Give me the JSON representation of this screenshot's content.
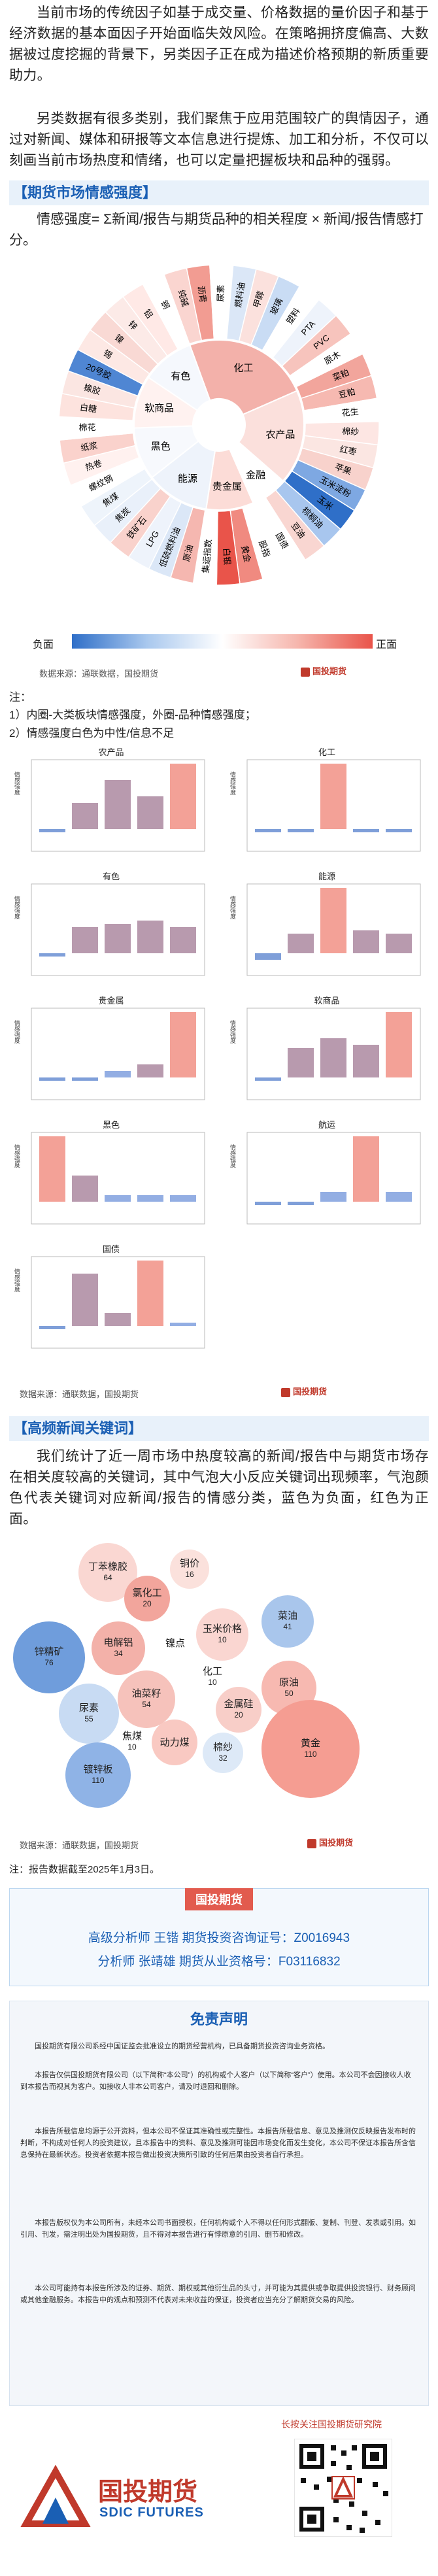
{
  "intro": {
    "p1": "当前市场的传统因子如基于成交量、价格数据的量价因子和基于经济数据的基本面因子开始面临失效风险。在策略拥挤度偏高、大数据被过度挖掘的背景下，另类因子正在成为描述价格预期的新质重要助力。",
    "p2": "另类数据有很多类别，我们聚焦于应用范围较广的舆情因子，通过对新闻、媒体和研报等文本信息进行提炼、加工和分析，不仅可以刻画当前市场热度和情绪，也可以定量把握板块和品种的强弱。"
  },
  "section1": {
    "title": "【期货市场情感强度】",
    "formula": "情感强度= Σ新闻/报告与期货品种的相关程度 × 新闻/报告情感打分。"
  },
  "sunburst": {
    "inner": [
      "化工",
      "农产品",
      "金融",
      "贵金属",
      "能源",
      "黑色",
      "软商品",
      "有色"
    ],
    "outer": [
      "纯碱",
      "沥青",
      "尿素",
      "燃料油",
      "甲醇",
      "玻璃",
      "塑料",
      "PTA",
      "PVC",
      "原木",
      "菜粕",
      "豆粕",
      "花生",
      "棉纱",
      "红枣",
      "苹果",
      "玉米淀粉",
      "玉米",
      "棕榈油",
      "豆油",
      "国债",
      "股指",
      "黄金",
      "白银",
      "集运指数",
      "原油",
      "低硫燃料油",
      "LPG",
      "铁矿石",
      "焦炭",
      "焦煤",
      "螺纹钢",
      "热卷",
      "纸浆",
      "棉花",
      "白糖",
      "橡胶",
      "20号胶",
      "锡",
      "镍",
      "锌",
      "铝",
      "铜"
    ],
    "legend_neg": "负面",
    "legend_pos": "正面",
    "source": "数据来源：通联数据，国投期货",
    "colors": {
      "neg": "#5b8fd6",
      "pos": "#f08a80"
    }
  },
  "notes": {
    "head": "注：",
    "n1": "1）内圈-大类板块情感强度，外圈-品种情感强度；",
    "n2": "2）情感强度白色为中性/信息不足"
  },
  "minis": [
    {
      "title": "农产品",
      "values": [
        -0.05,
        0.4,
        0.75,
        0.5,
        1.0
      ]
    },
    {
      "title": "化工",
      "values": [
        -0.05,
        -0.05,
        1.0,
        -0.05,
        -0.05
      ]
    },
    {
      "title": "有色",
      "values": [
        -0.05,
        0.4,
        0.45,
        0.5,
        0.4
      ]
    },
    {
      "title": "能源",
      "values": [
        -0.1,
        0.3,
        1.0,
        0.35,
        0.3
      ]
    },
    {
      "title": "贵金属",
      "values": [
        -0.05,
        -0.05,
        0.1,
        0.2,
        1.0
      ]
    },
    {
      "title": "软商品",
      "values": [
        -0.05,
        0.45,
        0.6,
        0.5,
        1.0
      ]
    },
    {
      "title": "黑色",
      "values": [
        1.0,
        0.4,
        0.1,
        0.1,
        0.1
      ]
    },
    {
      "title": "航运",
      "values": [
        -0.05,
        -0.05,
        0.15,
        1.0,
        0.15
      ]
    },
    {
      "title": "国债",
      "values": [
        -0.05,
        0.8,
        0.2,
        1.0,
        0.05
      ]
    }
  ],
  "mini_ylabel": "情感强度",
  "mini_source": "数据来源：通联数据，国投期货",
  "section2": {
    "title": "【高频新闻关键词】",
    "para": "我们统计了近一周市场中热度较高的新闻/报告中与期货市场存在相关度较高的关键词，其中气泡大小反应关键词出现频率，气泡颜色代表关键词对应新闻/报告的情感分类，蓝色为负面，红色为正面。"
  },
  "bubbles": [
    {
      "name": "丁苯橡胶",
      "value": "64"
    },
    {
      "name": "铜价",
      "value": "16"
    },
    {
      "name": "氯化工",
      "value": "20"
    },
    {
      "name": "锌精矿",
      "value": "76"
    },
    {
      "name": "电解铝",
      "value": "34"
    },
    {
      "name": "镍点",
      "value": ""
    },
    {
      "name": "玉米价格",
      "value": "10"
    },
    {
      "name": "菜油",
      "value": "41"
    },
    {
      "name": "化工",
      "value": "10"
    },
    {
      "name": "油菜籽",
      "value": "54"
    },
    {
      "name": "金属硅",
      "value": "20"
    },
    {
      "name": "原油",
      "value": "50"
    },
    {
      "name": "尿素",
      "value": "55"
    },
    {
      "name": "焦煤",
      "value": "10"
    },
    {
      "name": "动力煤",
      "value": ""
    },
    {
      "name": "棉纱",
      "value": "32"
    },
    {
      "name": "黄金",
      "value": "110"
    },
    {
      "name": "镀锌板",
      "value": "110"
    }
  ],
  "bubble_source": "数据来源：通联数据，国投期货",
  "report_note": "注：报告数据截至2025年1月3日。",
  "analyst": {
    "header": "国投期货",
    "line1": "高级分析师  王锴  期货投资咨询证号：Z0016943",
    "line2": "分析师  张靖雄  期货从业资格号：F03116832"
  },
  "disclaimer": {
    "title": "免责声明",
    "p1": "国投期货有限公司系经中国证监会批准设立的期货经营机构，已具备期货投资咨询业务资格。",
    "p2": "本报告仅供国投期货有限公司（以下简称“本公司”）的机构或个人客户（以下简称“客户”）使用。本公司不会因接收人收到本报告而视其为客户。如接收人非本公司客户，请及时退回和删除。",
    "p3": "本报告所载信息均源于公开资料，但本公司不保证其准确性或完整性。本报告所载信息、意见及推测仅反映报告发布时的判断，不构成对任何人的投资建议，且本报告中的资料、意见及推测可能因市场变化而发生变化，本公司不保证本报告所含信息保持在最新状态。投资者依据本报告做出投资决策所引致的任何后果由投资者自行承担。",
    "p4": "本报告版权仅为本公司所有，未经本公司书面授权，任何机构或个人不得以任何形式翻版、复制、刊登、发表或引用。如引用、刊发，需注明出处为国投期货，且不得对本报告进行有悖原意的引用、删节和修改。",
    "p5": "本公司可能持有本报告所涉及的证券、期货、期权或其他衍生品的头寸，并可能为其提供或争取提供投资银行、财务顾问或其他金融服务。本报告中的观点和预测不代表对未来收益的保证，投资者应当充分了解期货交易的风险。"
  },
  "footer": {
    "follow": "长按关注国投期货研究院",
    "brand_cn": "国投期货",
    "brand_en": "SDIC FUTURES"
  }
}
